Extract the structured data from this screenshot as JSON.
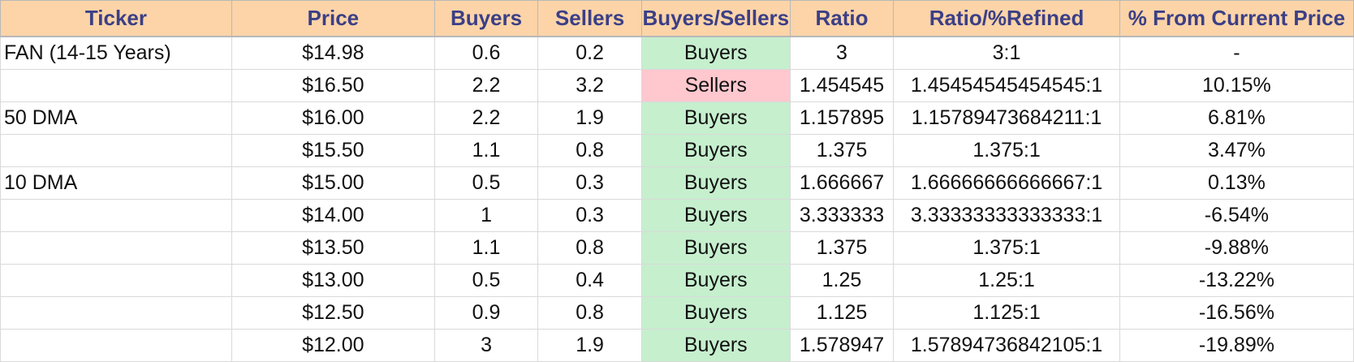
{
  "headers": [
    "Ticker",
    "Price",
    "Buyers",
    "Sellers",
    "Buyers/Sellers",
    "Ratio",
    "Ratio/%Refined",
    "% From Current Price"
  ],
  "rows": [
    {
      "ticker": "FAN (14-15 Years)",
      "price": "$14.98",
      "buyers": "0.6",
      "sellers": "0.2",
      "signal": "Buyers",
      "ratio": "3",
      "refined": "3:1",
      "pct": "-"
    },
    {
      "ticker": "",
      "price": "$16.50",
      "buyers": "2.2",
      "sellers": "3.2",
      "signal": "Sellers",
      "ratio": "1.454545",
      "refined": "1.45454545454545:1",
      "pct": "10.15%"
    },
    {
      "ticker": "50 DMA",
      "price": "$16.00",
      "buyers": "2.2",
      "sellers": "1.9",
      "signal": "Buyers",
      "ratio": "1.157895",
      "refined": "1.15789473684211:1",
      "pct": "6.81%"
    },
    {
      "ticker": "",
      "price": "$15.50",
      "buyers": "1.1",
      "sellers": "0.8",
      "signal": "Buyers",
      "ratio": "1.375",
      "refined": "1.375:1",
      "pct": "3.47%"
    },
    {
      "ticker": "10 DMA",
      "price": "$15.00",
      "buyers": "0.5",
      "sellers": "0.3",
      "signal": "Buyers",
      "ratio": "1.666667",
      "refined": "1.66666666666667:1",
      "pct": "0.13%"
    },
    {
      "ticker": "",
      "price": "$14.00",
      "buyers": "1",
      "sellers": "0.3",
      "signal": "Buyers",
      "ratio": "3.333333",
      "refined": "3.33333333333333:1",
      "pct": "-6.54%"
    },
    {
      "ticker": "",
      "price": "$13.50",
      "buyers": "1.1",
      "sellers": "0.8",
      "signal": "Buyers",
      "ratio": "1.375",
      "refined": "1.375:1",
      "pct": "-9.88%"
    },
    {
      "ticker": "",
      "price": "$13.00",
      "buyers": "0.5",
      "sellers": "0.4",
      "signal": "Buyers",
      "ratio": "1.25",
      "refined": "1.25:1",
      "pct": "-13.22%"
    },
    {
      "ticker": "",
      "price": "$12.50",
      "buyers": "0.9",
      "sellers": "0.8",
      "signal": "Buyers",
      "ratio": "1.125",
      "refined": "1.125:1",
      "pct": "-16.56%"
    },
    {
      "ticker": "",
      "price": "$12.00",
      "buyers": "3",
      "sellers": "1.9",
      "signal": "Buyers",
      "ratio": "1.578947",
      "refined": "1.57894736842105:1",
      "pct": "-19.89%"
    }
  ],
  "colors": {
    "header_bg": "#fcd4a8",
    "header_text": "#3b3f86",
    "buyers_bg": "#c6efce",
    "buyers_text": "#0a6b1f",
    "sellers_bg": "#ffc7ce",
    "sellers_text": "#9c0006"
  }
}
